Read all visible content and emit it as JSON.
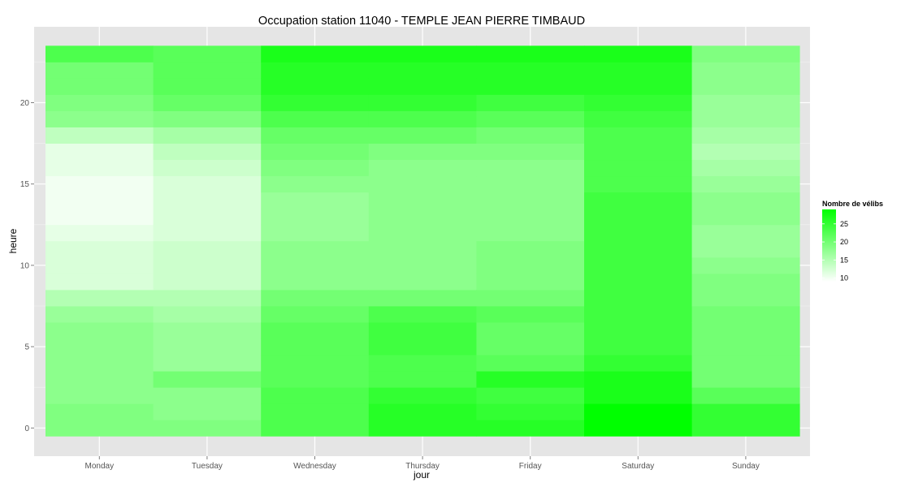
{
  "chart_data": {
    "type": "heatmap",
    "title": "Occupation station 11040 - TEMPLE JEAN PIERRE TIMBAUD",
    "xlabel": "jour",
    "ylabel": "heure",
    "x_categories": [
      "Monday",
      "Tuesday",
      "Wednesday",
      "Thursday",
      "Friday",
      "Saturday",
      "Sunday"
    ],
    "y_ticks": [
      0,
      5,
      10,
      15,
      20
    ],
    "y_range": [
      0,
      23
    ],
    "grid": true,
    "legend": {
      "title": "Nombre de vélibs",
      "position": "right",
      "ticks": [
        10,
        15,
        20,
        25
      ],
      "range": [
        9,
        29
      ],
      "low_color": "#ffffff",
      "high_color": "#00ff00"
    },
    "values": {
      "Monday": [
        19,
        19,
        18,
        18,
        18,
        18,
        18,
        17,
        15,
        12,
        12,
        12,
        11,
        10,
        10,
        10,
        11,
        11,
        14,
        18,
        19,
        20,
        20,
        23
      ],
      "Tuesday": [
        19,
        18,
        18,
        20,
        17,
        17,
        17,
        16,
        15,
        13,
        13,
        13,
        12,
        12,
        12,
        12,
        13,
        14,
        16,
        19,
        21,
        22,
        22,
        22
      ],
      "Wednesday": [
        23,
        23,
        23,
        22,
        22,
        22,
        22,
        21,
        20,
        18,
        18,
        18,
        17,
        17,
        17,
        18,
        19,
        20,
        21,
        23,
        25,
        26,
        26,
        27
      ],
      "Thursday": [
        26,
        26,
        25,
        23,
        23,
        24,
        24,
        23,
        20,
        18,
        18,
        18,
        18,
        18,
        18,
        18,
        18,
        19,
        21,
        23,
        25,
        26,
        26,
        27
      ],
      "Friday": [
        26,
        25,
        24,
        26,
        22,
        21,
        21,
        22,
        20,
        19,
        19,
        19,
        18,
        18,
        18,
        18,
        18,
        19,
        20,
        22,
        24,
        26,
        26,
        27
      ],
      "Saturday": [
        29,
        29,
        27,
        27,
        25,
        24,
        24,
        24,
        24,
        24,
        24,
        24,
        24,
        24,
        24,
        23,
        23,
        23,
        23,
        24,
        25,
        26,
        26,
        27
      ],
      "Sunday": [
        25,
        25,
        22,
        20,
        20,
        20,
        20,
        20,
        19,
        19,
        18,
        17,
        17,
        18,
        18,
        17,
        16,
        15,
        16,
        17,
        17,
        18,
        18,
        19
      ]
    }
  }
}
